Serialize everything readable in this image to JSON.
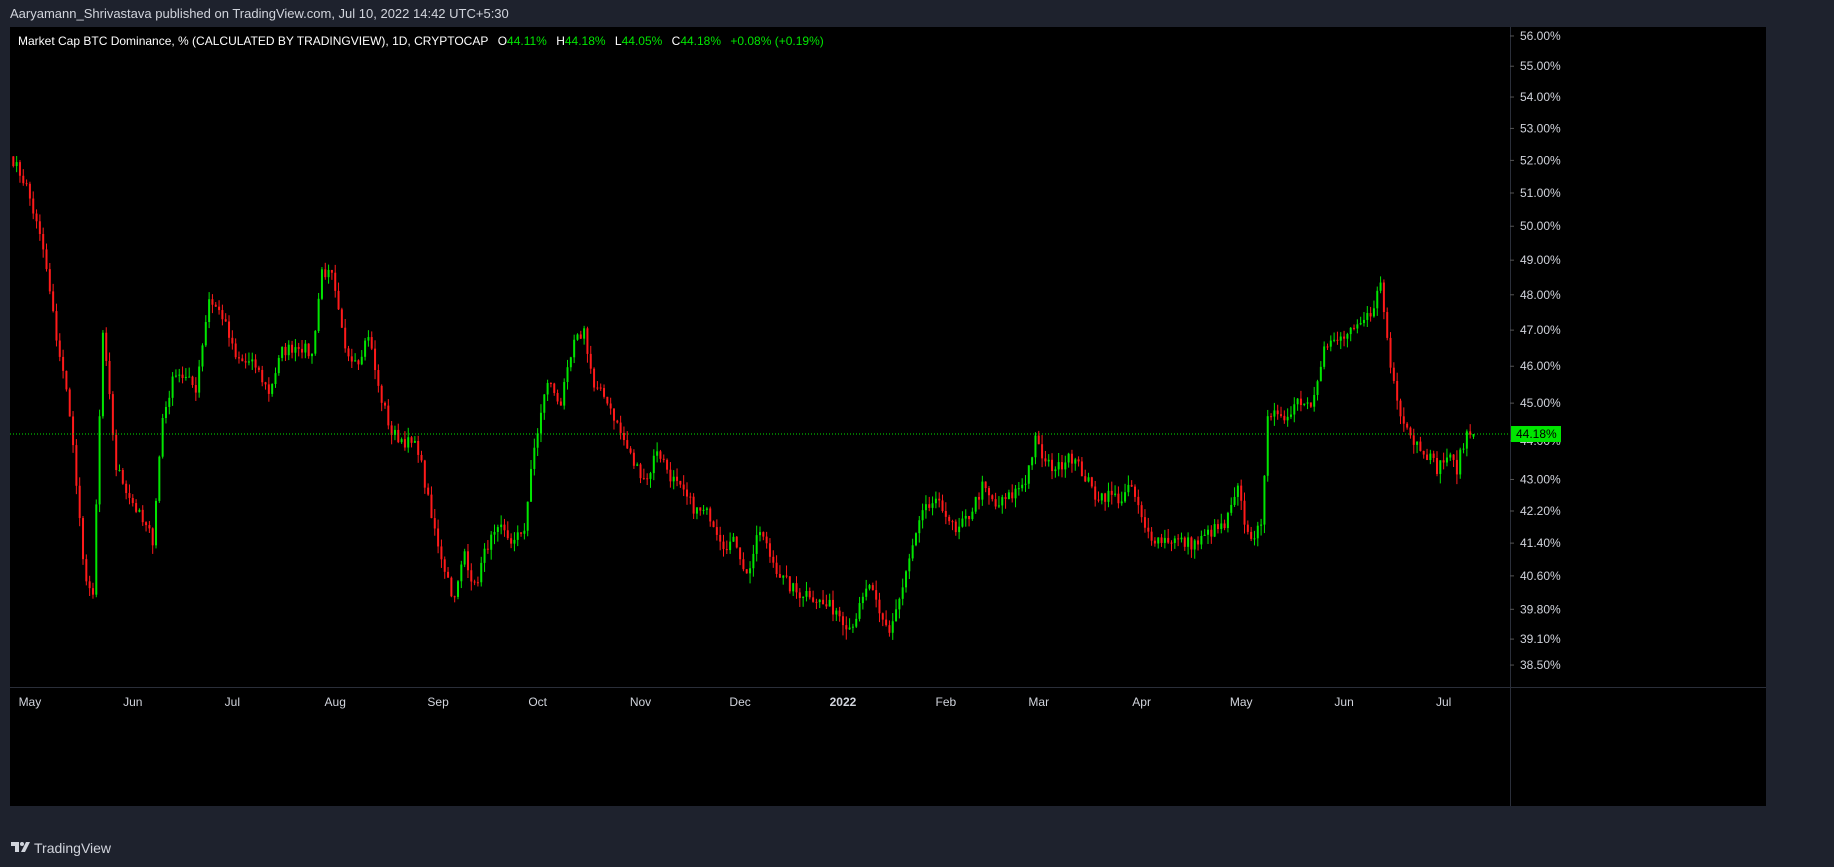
{
  "header": {
    "publish_line": "Aaryamann_Shrivastava published on TradingView.com, Jul 10, 2022 14:42 UTC+5:30"
  },
  "legend": {
    "title": "Market Cap BTC Dominance, % (CALCULATED BY TRADINGVIEW), 1D, CRYPTOCAP",
    "open_key": "O",
    "open_value": "44.11%",
    "high_key": "H",
    "high_value": "44.18%",
    "low_key": "L",
    "low_value": "44.05%",
    "close_key": "C",
    "close_value": "44.18%",
    "change": "+0.08% (+0.19%)"
  },
  "footer": {
    "brand": "TradingView",
    "logo": "tradingview-logo-icon"
  },
  "colors": {
    "up": "#00e600",
    "down": "#ff1a1a",
    "background": "#000000",
    "frame": "#1e222d",
    "text": "#d1d4dc"
  },
  "chart_data": {
    "type": "candlestick",
    "title": "Market Cap BTC Dominance, % (CALCULATED BY TRADINGVIEW), 1D, CRYPTOCAP",
    "x_tick_labels": [
      "May",
      "Jun",
      "Jul",
      "Aug",
      "Sep",
      "Oct",
      "Nov",
      "Dec",
      "2022",
      "Feb",
      "Mar",
      "Apr",
      "May",
      "Jun",
      "Jul"
    ],
    "y_tick_labels": [
      "56.00%",
      "55.00%",
      "54.00%",
      "53.00%",
      "52.00%",
      "51.00%",
      "50.00%",
      "49.00%",
      "48.00%",
      "47.00%",
      "46.00%",
      "45.00%",
      "44.00%",
      "43.00%",
      "42.20%",
      "41.40%",
      "40.60%",
      "39.80%",
      "39.10%",
      "38.50%"
    ],
    "y_scale": "log",
    "ylim": [
      38.0,
      56.3
    ],
    "grid": false,
    "last_price": 44.18,
    "last_price_label": "44.18%",
    "last_bar": {
      "open": 44.11,
      "high": 44.18,
      "low": 44.05,
      "close": 44.18,
      "change": 0.08,
      "change_pct": 0.19
    },
    "close_path": [
      [
        "2021-04-26",
        52.0
      ],
      [
        "2021-04-30",
        51.2
      ],
      [
        "2021-05-05",
        49.3
      ],
      [
        "2021-05-09",
        46.8
      ],
      [
        "2021-05-13",
        44.8
      ],
      [
        "2021-05-17",
        40.9
      ],
      [
        "2021-05-20",
        40.0
      ],
      [
        "2021-05-23",
        46.9
      ],
      [
        "2021-05-27",
        43.3
      ],
      [
        "2021-05-31",
        42.6
      ],
      [
        "2021-06-04",
        41.9
      ],
      [
        "2021-06-07",
        41.5
      ],
      [
        "2021-06-10",
        44.6
      ],
      [
        "2021-06-14",
        45.9
      ],
      [
        "2021-06-20",
        45.4
      ],
      [
        "2021-06-24",
        47.9
      ],
      [
        "2021-06-28",
        47.4
      ],
      [
        "2021-07-02",
        46.2
      ],
      [
        "2021-07-08",
        46.0
      ],
      [
        "2021-07-12",
        45.3
      ],
      [
        "2021-07-16",
        46.4
      ],
      [
        "2021-07-21",
        46.6
      ],
      [
        "2021-07-25",
        46.3
      ],
      [
        "2021-07-28",
        48.7
      ],
      [
        "2021-07-31",
        48.5
      ],
      [
        "2021-08-04",
        46.4
      ],
      [
        "2021-08-08",
        46.2
      ],
      [
        "2021-08-11",
        46.9
      ],
      [
        "2021-08-14",
        45.4
      ],
      [
        "2021-08-18",
        44.2
      ],
      [
        "2021-08-22",
        44.0
      ],
      [
        "2021-08-26",
        43.8
      ],
      [
        "2021-08-30",
        42.0
      ],
      [
        "2021-09-03",
        40.8
      ],
      [
        "2021-09-06",
        40.0
      ],
      [
        "2021-09-09",
        41.2
      ],
      [
        "2021-09-12",
        40.3
      ],
      [
        "2021-09-16",
        41.4
      ],
      [
        "2021-09-20",
        41.7
      ],
      [
        "2021-09-24",
        41.4
      ],
      [
        "2021-09-27",
        41.8
      ],
      [
        "2021-09-30",
        43.8
      ],
      [
        "2021-10-04",
        45.6
      ],
      [
        "2021-10-08",
        45.0
      ],
      [
        "2021-10-12",
        46.6
      ],
      [
        "2021-10-15",
        47.0
      ],
      [
        "2021-10-18",
        45.4
      ],
      [
        "2021-10-22",
        45.1
      ],
      [
        "2021-10-26",
        44.2
      ],
      [
        "2021-10-30",
        43.4
      ],
      [
        "2021-11-03",
        43.0
      ],
      [
        "2021-11-06",
        43.8
      ],
      [
        "2021-11-10",
        43.1
      ],
      [
        "2021-11-14",
        42.6
      ],
      [
        "2021-11-18",
        42.2
      ],
      [
        "2021-11-22",
        42.1
      ],
      [
        "2021-11-26",
        41.4
      ],
      [
        "2021-11-30",
        41.4
      ],
      [
        "2021-12-03",
        40.6
      ],
      [
        "2021-12-07",
        41.7
      ],
      [
        "2021-12-10",
        41.1
      ],
      [
        "2021-12-14",
        40.5
      ],
      [
        "2021-12-18",
        40.2
      ],
      [
        "2021-12-22",
        40.2
      ],
      [
        "2021-12-26",
        39.9
      ],
      [
        "2021-12-30",
        39.8
      ],
      [
        "2022-01-03",
        39.4
      ],
      [
        "2022-01-06",
        39.8
      ],
      [
        "2022-01-09",
        40.4
      ],
      [
        "2022-01-12",
        39.6
      ],
      [
        "2022-01-15",
        39.3
      ],
      [
        "2022-01-19",
        40.3
      ],
      [
        "2022-01-22",
        41.3
      ],
      [
        "2022-01-25",
        42.1
      ],
      [
        "2022-01-28",
        42.4
      ],
      [
        "2022-02-01",
        42.2
      ],
      [
        "2022-02-04",
        41.6
      ],
      [
        "2022-02-08",
        42.1
      ],
      [
        "2022-02-12",
        42.8
      ],
      [
        "2022-02-16",
        42.3
      ],
      [
        "2022-02-21",
        42.6
      ],
      [
        "2022-02-25",
        43.0
      ],
      [
        "2022-02-28",
        44.0
      ],
      [
        "2022-03-03",
        43.4
      ],
      [
        "2022-03-07",
        43.3
      ],
      [
        "2022-03-10",
        43.7
      ],
      [
        "2022-03-14",
        43.2
      ],
      [
        "2022-03-18",
        42.6
      ],
      [
        "2022-03-22",
        42.6
      ],
      [
        "2022-03-26",
        42.5
      ],
      [
        "2022-03-29",
        42.8
      ],
      [
        "2022-04-02",
        41.7
      ],
      [
        "2022-04-06",
        41.5
      ],
      [
        "2022-04-10",
        41.5
      ],
      [
        "2022-04-14",
        41.4
      ],
      [
        "2022-04-18",
        41.4
      ],
      [
        "2022-04-22",
        41.7
      ],
      [
        "2022-04-26",
        41.8
      ],
      [
        "2022-04-30",
        42.7
      ],
      [
        "2022-05-03",
        41.6
      ],
      [
        "2022-05-07",
        41.7
      ],
      [
        "2022-05-09",
        44.8
      ],
      [
        "2022-05-13",
        44.5
      ],
      [
        "2022-05-18",
        45.1
      ],
      [
        "2022-05-22",
        45.0
      ],
      [
        "2022-05-26",
        46.5
      ],
      [
        "2022-06-01",
        46.8
      ],
      [
        "2022-06-05",
        47.0
      ],
      [
        "2022-06-09",
        47.5
      ],
      [
        "2022-06-12",
        48.3
      ],
      [
        "2022-06-15",
        46.0
      ],
      [
        "2022-06-18",
        44.8
      ],
      [
        "2022-06-22",
        44.0
      ],
      [
        "2022-06-25",
        43.8
      ],
      [
        "2022-06-29",
        43.3
      ],
      [
        "2022-07-02",
        43.6
      ],
      [
        "2022-07-05",
        43.3
      ],
      [
        "2022-07-08",
        44.2
      ],
      [
        "2022-07-10",
        44.18
      ]
    ]
  }
}
